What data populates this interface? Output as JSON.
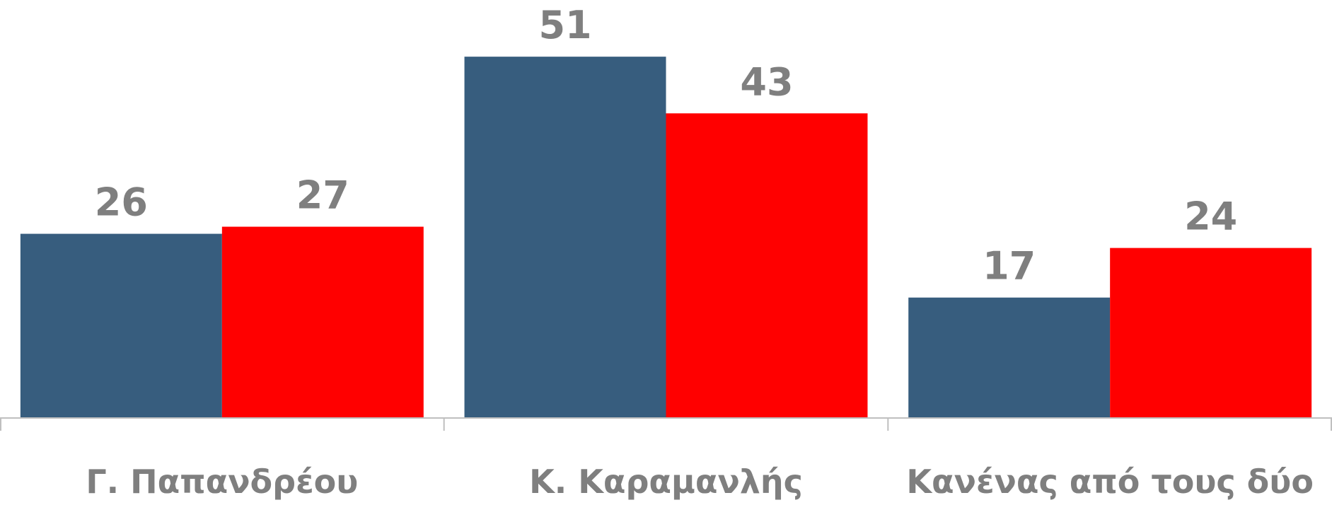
{
  "chart_data": {
    "type": "bar",
    "categories": [
      "Γ. Παπανδρέου",
      "Κ. Καραμανλής",
      "Κανένας από τους δύο"
    ],
    "series": [
      {
        "color": "#375d7e",
        "values": [
          26,
          51,
          17
        ]
      },
      {
        "color": "#ff0000",
        "values": [
          27,
          43,
          24
        ]
      }
    ],
    "ylim": [
      0,
      59
    ]
  }
}
